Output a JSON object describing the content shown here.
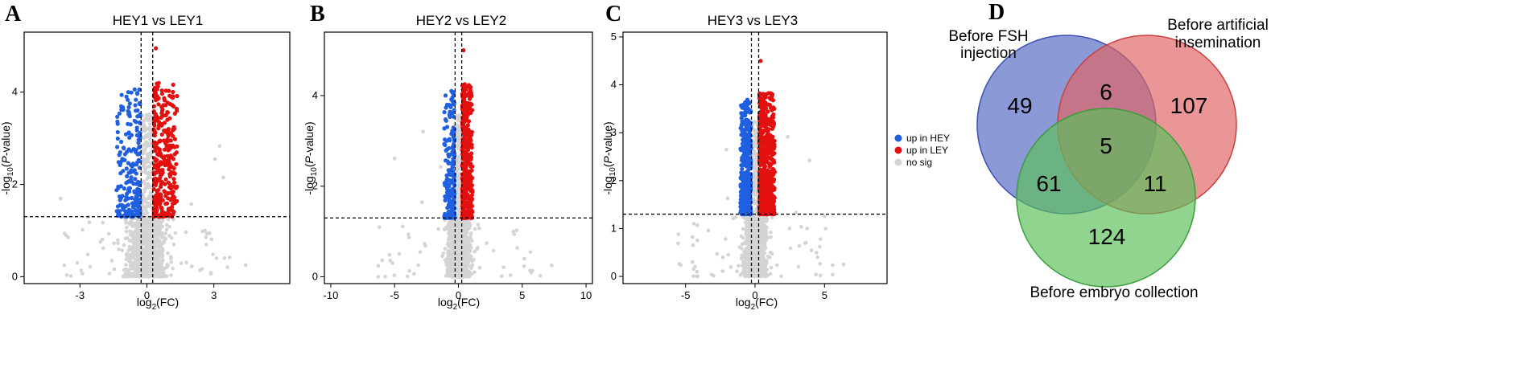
{
  "figure": {
    "legend": {
      "items": [
        {
          "label": "up in HEY",
          "color": "#1f5fe0"
        },
        {
          "label": "up in LEY",
          "color": "#e31010"
        },
        {
          "label": "no sig",
          "color": "#d4d4d4"
        }
      ]
    },
    "colors": {
      "up_hey": "#1f5fe0",
      "up_ley": "#e31010",
      "nosig": "#d4d4d4",
      "venn_a": "#5468c4",
      "venn_b": "#e06464",
      "venn_c": "#5cc05c"
    }
  },
  "chart_data": [
    {
      "type": "scatter",
      "panel": "A",
      "title": "HEY1 vs LEY1",
      "xlabel": "log2(FC)",
      "ylabel": "-log10(P-value)",
      "xlim": [
        -5.5,
        6.4
      ],
      "ylim": [
        -0.15,
        5.3
      ],
      "xticks": [
        -3,
        0,
        3
      ],
      "yticks": [
        0,
        2,
        4
      ],
      "fc_threshold": [
        -0.26,
        0.26
      ],
      "p_threshold": 1.3,
      "n_up_hey": 230,
      "n_up_ley": 330,
      "n_nosig": 1400,
      "sig_x_spread": [
        1.05,
        1.05
      ],
      "max_x": 5.2,
      "max_y": 4.95
    },
    {
      "type": "scatter",
      "panel": "B",
      "title": "HEY2 vs LEY2",
      "xlabel": "log2(FC)",
      "ylabel": "-log10(P-value)",
      "xlim": [
        -10.5,
        10.5
      ],
      "ylim": [
        -0.15,
        5.4
      ],
      "xticks": [
        -10,
        -5,
        0,
        5,
        10
      ],
      "yticks": [
        0,
        2,
        4
      ],
      "fc_threshold": [
        -0.26,
        0.26
      ],
      "p_threshold": 1.3,
      "n_up_hey": 200,
      "n_up_ley": 420,
      "n_nosig": 1400,
      "sig_x_spread": [
        0.8,
        0.8
      ],
      "max_x": 8.6,
      "max_y": 5.0
    },
    {
      "type": "scatter",
      "panel": "C",
      "title": "HEY3 vs LEY3",
      "xlabel": "log2(FC)",
      "ylabel": "-log10(P-value)",
      "xlim": [
        -9.5,
        9.5
      ],
      "ylim": [
        -0.15,
        5.1
      ],
      "xticks": [
        -5,
        0,
        5
      ],
      "yticks": [
        0,
        1,
        2,
        3,
        4,
        5
      ],
      "fc_threshold": [
        -0.26,
        0.26
      ],
      "p_threshold": 1.3,
      "n_up_hey": 430,
      "n_up_ley": 620,
      "n_nosig": 1400,
      "sig_x_spread": [
        0.75,
        1.1
      ],
      "max_x": 7.5,
      "max_y": 4.5
    }
  ],
  "venn": {
    "panel": "D",
    "sets": [
      {
        "name_lines": [
          "Before FSH",
          "injection"
        ]
      },
      {
        "name_lines": [
          "Before artificial",
          "insemination"
        ]
      },
      {
        "name_lines": [
          "Before embryo collection"
        ]
      }
    ],
    "counts": {
      "a_only": "49",
      "b_only": "107",
      "c_only": "124",
      "ab": "6",
      "ac": "61",
      "bc": "11",
      "abc": "5"
    }
  }
}
